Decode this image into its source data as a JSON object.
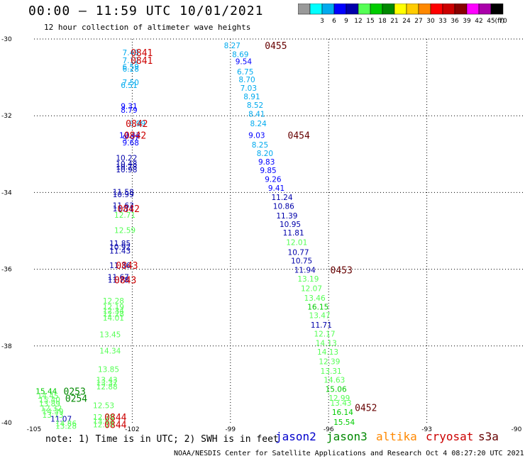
{
  "title": "00:00 – 11:59 UTC 10/01/2021",
  "subtitle": "12 hour collection of altimeter wave heights",
  "note": "note: 1) Time is in UTC; 2) SWH is in feet",
  "credit": "NOAA/NESDIS Center for Satellite Applications and Research   Oct  4 08:27:20 UTC 2021",
  "legend": [
    {
      "label": "jason2",
      "color": "#0000cc"
    },
    {
      "label": "jason3",
      "color": "#008800"
    },
    {
      "label": "altika",
      "color": "#ff8800"
    },
    {
      "label": "cryosat",
      "color": "#cc0000"
    },
    {
      "label": "s3a",
      "color": "#660000"
    }
  ],
  "colorbar": {
    "unit": "(ft)",
    "bins": [
      {
        "color": "#999999",
        "label": ""
      },
      {
        "color": "#00ffff",
        "label": "3"
      },
      {
        "color": "#00aaee",
        "label": "6"
      },
      {
        "color": "#0000ff",
        "label": "9"
      },
      {
        "color": "#0000aa",
        "label": "12"
      },
      {
        "color": "#55ff55",
        "label": "15"
      },
      {
        "color": "#00cc00",
        "label": "18"
      },
      {
        "color": "#008800",
        "label": "21"
      },
      {
        "color": "#ffff00",
        "label": "24"
      },
      {
        "color": "#ffcc00",
        "label": "27"
      },
      {
        "color": "#ff8800",
        "label": "30"
      },
      {
        "color": "#ff0000",
        "label": "33"
      },
      {
        "color": "#cc0000",
        "label": "36"
      },
      {
        "color": "#880000",
        "label": "39"
      },
      {
        "color": "#ff00ff",
        "label": "42"
      },
      {
        "color": "#aa00aa",
        "label": "45"
      },
      {
        "color": "#000000",
        "label": "70"
      }
    ]
  },
  "chart_data": {
    "type": "scatter",
    "xlim": [
      -105,
      -90
    ],
    "ylim": [
      -40,
      -30
    ],
    "xticks": [
      "-105",
      "-102",
      "-99",
      "-96",
      "-93",
      "-90"
    ],
    "yticks": [
      "-30",
      "-32",
      "-34",
      "-36",
      "-38",
      "-40"
    ],
    "grid": true,
    "points": [
      {
        "x": -102.3,
        "y": -30.35,
        "label": "7.48",
        "color": "#00aaee"
      },
      {
        "x": -102.3,
        "y": -30.55,
        "label": "7.12",
        "color": "#00aaee"
      },
      {
        "x": -102.3,
        "y": -30.72,
        "label": "6.59",
        "color": "#00aaee"
      },
      {
        "x": -102.3,
        "y": -30.78,
        "label": "6.28",
        "color": "#00aaee"
      },
      {
        "x": -102.3,
        "y": -31.13,
        "label": "7.50",
        "color": "#00aaee"
      },
      {
        "x": -102.35,
        "y": -31.2,
        "label": "6.51",
        "color": "#00aaee"
      },
      {
        "x": -102.35,
        "y": -31.75,
        "label": "9.31",
        "color": "#0000ff"
      },
      {
        "x": -102.35,
        "y": -31.85,
        "label": "8.79",
        "color": "#0000ff"
      },
      {
        "x": -102.1,
        "y": -32.2,
        "label": "8.99",
        "color": "#00aaee"
      },
      {
        "x": -102.4,
        "y": -32.5,
        "label": "10.43",
        "color": "#0000ff"
      },
      {
        "x": -102.3,
        "y": -32.58,
        "label": "9.97",
        "color": "#0000ff"
      },
      {
        "x": -102.3,
        "y": -32.7,
        "label": "9.68",
        "color": "#0000ff"
      },
      {
        "x": -102.5,
        "y": -33.1,
        "label": "10.22",
        "color": "#0000aa"
      },
      {
        "x": -102.5,
        "y": -33.25,
        "label": "10.48",
        "color": "#0000aa"
      },
      {
        "x": -102.5,
        "y": -33.33,
        "label": "10.78",
        "color": "#0000aa"
      },
      {
        "x": -102.5,
        "y": -33.4,
        "label": "10.98",
        "color": "#0000aa"
      },
      {
        "x": -102.6,
        "y": -33.98,
        "label": "11.58",
        "color": "#0000aa"
      },
      {
        "x": -102.6,
        "y": -34.05,
        "label": "10.99",
        "color": "#0000aa"
      },
      {
        "x": -102.6,
        "y": -34.33,
        "label": "11.63",
        "color": "#0000aa"
      },
      {
        "x": -102.6,
        "y": -34.42,
        "label": "11.71",
        "color": "#0000aa"
      },
      {
        "x": -102.55,
        "y": -34.58,
        "label": "12.71",
        "color": "#55ff55"
      },
      {
        "x": -102.55,
        "y": -34.98,
        "label": "12.59",
        "color": "#55ff55"
      },
      {
        "x": -102.7,
        "y": -35.32,
        "label": "11.85",
        "color": "#0000aa"
      },
      {
        "x": -102.7,
        "y": -35.42,
        "label": "10.92",
        "color": "#0000aa"
      },
      {
        "x": -102.7,
        "y": -35.52,
        "label": "11.43",
        "color": "#0000aa"
      },
      {
        "x": -102.7,
        "y": -35.9,
        "label": "11.36",
        "color": "#0000aa"
      },
      {
        "x": -102.75,
        "y": -36.2,
        "label": "11.67",
        "color": "#0000aa"
      },
      {
        "x": -102.75,
        "y": -36.28,
        "label": "11.78",
        "color": "#0000aa"
      },
      {
        "x": -102.9,
        "y": -36.82,
        "label": "12.28",
        "color": "#55ff55"
      },
      {
        "x": -102.9,
        "y": -36.98,
        "label": "12.19",
        "color": "#55ff55"
      },
      {
        "x": -102.9,
        "y": -37.08,
        "label": "12.34",
        "color": "#55ff55"
      },
      {
        "x": -102.9,
        "y": -37.16,
        "label": "12.28",
        "color": "#55ff55"
      },
      {
        "x": -102.9,
        "y": -37.26,
        "label": "14.01",
        "color": "#55ff55"
      },
      {
        "x": -103.0,
        "y": -37.7,
        "label": "13.45",
        "color": "#55ff55"
      },
      {
        "x": -103.0,
        "y": -38.12,
        "label": "14.34",
        "color": "#55ff55"
      },
      {
        "x": -103.05,
        "y": -38.6,
        "label": "13.85",
        "color": "#55ff55"
      },
      {
        "x": -103.1,
        "y": -38.88,
        "label": "13.43",
        "color": "#55ff55"
      },
      {
        "x": -103.1,
        "y": -38.96,
        "label": "13.37",
        "color": "#55ff55"
      },
      {
        "x": -103.1,
        "y": -39.06,
        "label": "12.88",
        "color": "#55ff55"
      },
      {
        "x": -103.2,
        "y": -39.55,
        "label": "12.53",
        "color": "#55ff55"
      },
      {
        "x": -103.2,
        "y": -39.85,
        "label": "12.78",
        "color": "#55ff55"
      },
      {
        "x": -103.2,
        "y": -39.95,
        "label": "13.04",
        "color": "#55ff55"
      },
      {
        "x": -103.2,
        "y": -40.05,
        "label": "12.19",
        "color": "#55ff55"
      },
      {
        "x": -99.2,
        "y": -30.17,
        "label": "8.27",
        "color": "#00aaee"
      },
      {
        "x": -98.95,
        "y": -30.4,
        "label": "8.69",
        "color": "#00aaee"
      },
      {
        "x": -98.85,
        "y": -30.58,
        "label": "9.54",
        "color": "#0000ff"
      },
      {
        "x": -98.8,
        "y": -30.85,
        "label": "6.75",
        "color": "#00aaee"
      },
      {
        "x": -98.75,
        "y": -31.05,
        "label": "8.70",
        "color": "#00aaee"
      },
      {
        "x": -98.7,
        "y": -31.28,
        "label": "7.03",
        "color": "#00aaee"
      },
      {
        "x": -98.6,
        "y": -31.5,
        "label": "8.91",
        "color": "#00aaee"
      },
      {
        "x": -98.5,
        "y": -31.72,
        "label": "8.52",
        "color": "#00aaee"
      },
      {
        "x": -98.45,
        "y": -31.95,
        "label": "8.41",
        "color": "#00aaee"
      },
      {
        "x": -98.4,
        "y": -32.2,
        "label": "8.24",
        "color": "#00aaee"
      },
      {
        "x": -98.45,
        "y": -32.5,
        "label": "9.03",
        "color": "#0000ff"
      },
      {
        "x": -98.35,
        "y": -32.75,
        "label": "8.25",
        "color": "#00aaee"
      },
      {
        "x": -98.2,
        "y": -32.98,
        "label": "8.20",
        "color": "#00aaee"
      },
      {
        "x": -98.15,
        "y": -33.2,
        "label": "9.83",
        "color": "#0000ff"
      },
      {
        "x": -98.1,
        "y": -33.42,
        "label": "9.85",
        "color": "#0000ff"
      },
      {
        "x": -97.95,
        "y": -33.65,
        "label": "9.26",
        "color": "#0000ff"
      },
      {
        "x": -97.85,
        "y": -33.88,
        "label": "9.41",
        "color": "#0000ff"
      },
      {
        "x": -97.75,
        "y": -34.12,
        "label": "11.24",
        "color": "#0000aa"
      },
      {
        "x": -97.7,
        "y": -34.35,
        "label": "10.86",
        "color": "#0000aa"
      },
      {
        "x": -97.6,
        "y": -34.6,
        "label": "11.39",
        "color": "#0000aa"
      },
      {
        "x": -97.5,
        "y": -34.82,
        "label": "10.95",
        "color": "#0000aa"
      },
      {
        "x": -97.4,
        "y": -35.05,
        "label": "11.81",
        "color": "#0000aa"
      },
      {
        "x": -97.3,
        "y": -35.3,
        "label": "12.01",
        "color": "#55ff55"
      },
      {
        "x": -97.25,
        "y": -35.55,
        "label": "10.77",
        "color": "#0000aa"
      },
      {
        "x": -97.15,
        "y": -35.78,
        "label": "10.75",
        "color": "#0000aa"
      },
      {
        "x": -97.05,
        "y": -36.02,
        "label": "11.94",
        "color": "#0000aa"
      },
      {
        "x": -96.95,
        "y": -36.25,
        "label": "13.19",
        "color": "#55ff55"
      },
      {
        "x": -96.85,
        "y": -36.5,
        "label": "12.07",
        "color": "#55ff55"
      },
      {
        "x": -96.75,
        "y": -36.75,
        "label": "13.46",
        "color": "#55ff55"
      },
      {
        "x": -96.65,
        "y": -36.98,
        "label": "16.15",
        "color": "#00cc00"
      },
      {
        "x": -96.6,
        "y": -37.2,
        "label": "13.47",
        "color": "#55ff55"
      },
      {
        "x": -96.55,
        "y": -37.45,
        "label": "11.71",
        "color": "#0000aa"
      },
      {
        "x": -96.45,
        "y": -37.68,
        "label": "12.17",
        "color": "#55ff55"
      },
      {
        "x": -96.4,
        "y": -37.92,
        "label": "14.13",
        "color": "#55ff55"
      },
      {
        "x": -96.35,
        "y": -38.15,
        "label": "14.13",
        "color": "#55ff55"
      },
      {
        "x": -96.3,
        "y": -38.4,
        "label": "12.39",
        "color": "#55ff55"
      },
      {
        "x": -96.25,
        "y": -38.65,
        "label": "13.31",
        "color": "#55ff55"
      },
      {
        "x": -96.15,
        "y": -38.88,
        "label": "14.63",
        "color": "#55ff55"
      },
      {
        "x": -96.1,
        "y": -39.12,
        "label": "15.06",
        "color": "#00cc00"
      },
      {
        "x": -96.0,
        "y": -39.35,
        "label": "12.99",
        "color": "#55ff55"
      },
      {
        "x": -95.95,
        "y": -39.48,
        "label": "13.43",
        "color": "#55ff55"
      },
      {
        "x": -95.9,
        "y": -39.72,
        "label": "16.14",
        "color": "#00cc00"
      },
      {
        "x": -95.85,
        "y": -39.98,
        "label": "15.54",
        "color": "#00cc00"
      },
      {
        "x": -104.95,
        "y": -39.18,
        "label": "15.44",
        "color": "#00cc00"
      },
      {
        "x": -104.9,
        "y": -39.3,
        "label": "14.45",
        "color": "#55ff55"
      },
      {
        "x": -104.85,
        "y": -39.4,
        "label": "15.40",
        "color": "#55ff55"
      },
      {
        "x": -104.85,
        "y": -39.5,
        "label": "13.89",
        "color": "#55ff55"
      },
      {
        "x": -104.8,
        "y": -39.62,
        "label": "12.32",
        "color": "#55ff55"
      },
      {
        "x": -104.75,
        "y": -39.7,
        "label": "14.39",
        "color": "#55ff55"
      },
      {
        "x": -104.75,
        "y": -39.8,
        "label": "13.73",
        "color": "#55ff55"
      },
      {
        "x": -104.5,
        "y": -39.9,
        "label": "11.07",
        "color": "#0000aa"
      },
      {
        "x": -104.35,
        "y": -40.02,
        "label": "14.86",
        "color": "#55ff55"
      },
      {
        "x": -104.35,
        "y": -40.08,
        "label": "13.28",
        "color": "#55ff55"
      }
    ],
    "passes": [
      {
        "x": -102.05,
        "y": -30.35,
        "label": "0841",
        "color": "#cc0000"
      },
      {
        "x": -102.05,
        "y": -30.55,
        "label": "0841",
        "color": "#cc0000"
      },
      {
        "x": -97.95,
        "y": -30.17,
        "label": "0455",
        "color": "#660000"
      },
      {
        "x": -102.2,
        "y": -32.2,
        "label": "0842",
        "color": "#cc0000"
      },
      {
        "x": -102.25,
        "y": -32.5,
        "label": "0842",
        "color": "#cc0000"
      },
      {
        "x": -97.25,
        "y": -32.5,
        "label": "0454",
        "color": "#660000"
      },
      {
        "x": -102.45,
        "y": -34.42,
        "label": "0842",
        "color": "#cc0000"
      },
      {
        "x": -102.5,
        "y": -35.9,
        "label": "0843",
        "color": "#cc0000"
      },
      {
        "x": -102.55,
        "y": -36.28,
        "label": "0843",
        "color": "#cc0000"
      },
      {
        "x": -95.95,
        "y": -36.02,
        "label": "0453",
        "color": "#660000"
      },
      {
        "x": -102.85,
        "y": -39.85,
        "label": "0844",
        "color": "#cc0000"
      },
      {
        "x": -102.85,
        "y": -40.05,
        "label": "0844",
        "color": "#cc0000"
      },
      {
        "x": -95.2,
        "y": -39.6,
        "label": "0452",
        "color": "#660000"
      },
      {
        "x": -104.1,
        "y": -39.18,
        "label": "0253",
        "color": "#008800"
      },
      {
        "x": -104.05,
        "y": -39.36,
        "label": "0254",
        "color": "#008800"
      }
    ]
  }
}
